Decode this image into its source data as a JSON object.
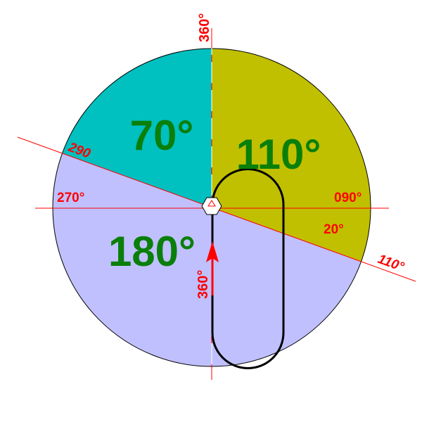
{
  "colors": {
    "sector_70": "#00c0c0",
    "sector_110": "#c0c000",
    "sector_180": "#c0c0ff",
    "sector_text": "#0a7f0a",
    "marks": "#ff0000",
    "path": "#000000"
  },
  "sectors": [
    {
      "label": "70°",
      "from_deg": 290,
      "to_deg": 360
    },
    {
      "label": "110°",
      "from_deg": 0,
      "to_deg": 110
    },
    {
      "label": "180°",
      "from_deg": 110,
      "to_deg": 290
    }
  ],
  "labels": {
    "top": "360°",
    "boundary_290": "290",
    "west": "270°",
    "east": "090°",
    "offset": "20°",
    "boundary_110": "110°",
    "heading": "360°"
  }
}
